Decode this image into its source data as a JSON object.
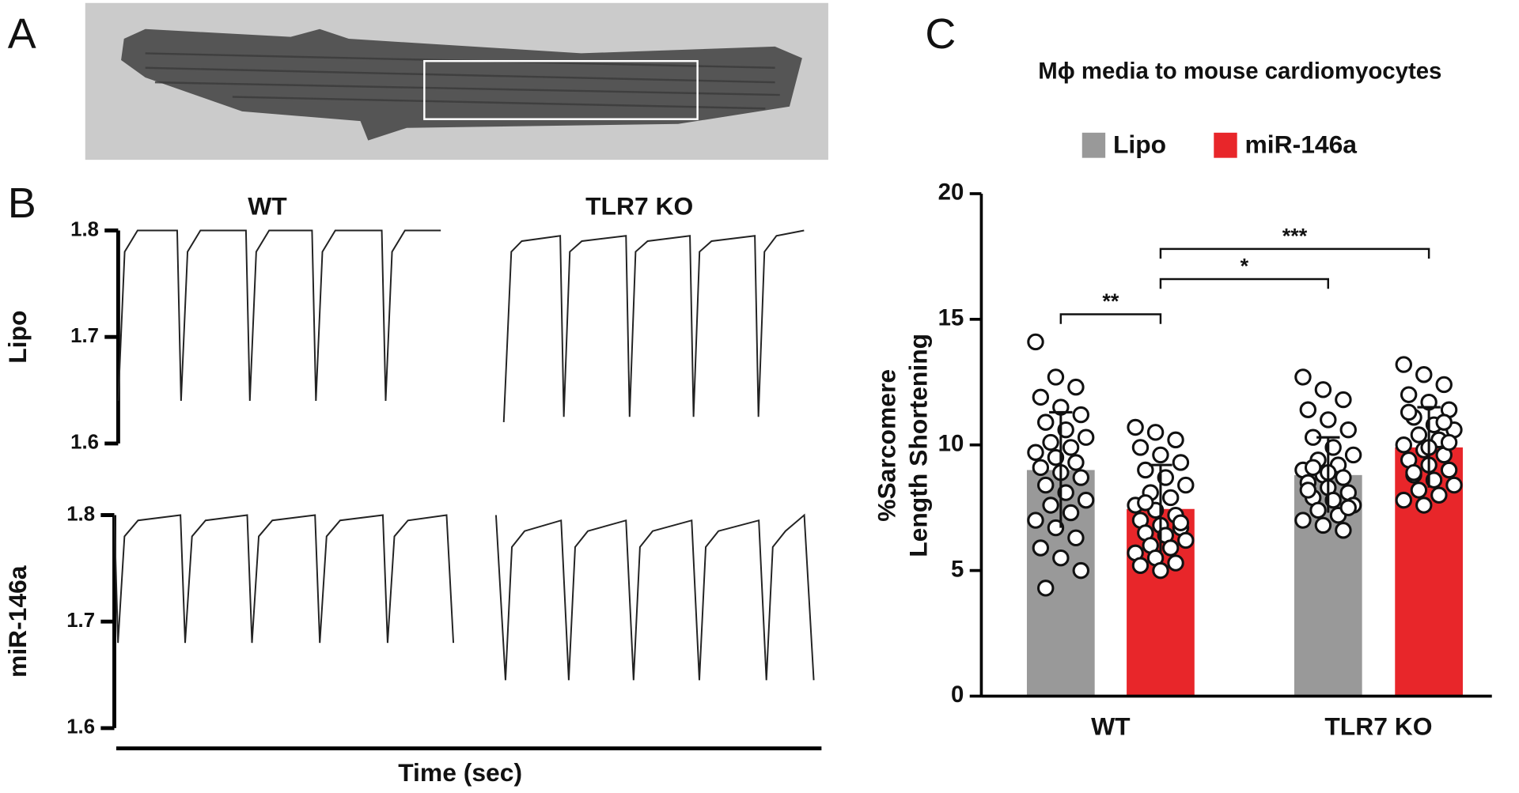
{
  "chart_data": [
    {
      "type": "image",
      "label": "A"
    },
    {
      "type": "line",
      "label": "B",
      "columns": [
        "WT",
        "TLR7 KO"
      ],
      "xlabel": "Time (sec)",
      "rows": [
        {
          "label": "Lipo",
          "ylim": [
            1.6,
            1.8
          ],
          "yticks": [
            1.6,
            1.7,
            1.8
          ],
          "series": [
            {
              "color": "#222222",
              "x": [
                0,
                0.02,
                0.06,
                0.183,
                0.195,
                0.215,
                0.255,
                0.396,
                0.408,
                0.428,
                0.468,
                0.601,
                0.613,
                0.633,
                0.673,
                0.817,
                0.829,
                0.849,
                0.889,
                1.0
              ],
              "values": [
                1.64,
                1.78,
                1.8,
                1.8,
                1.64,
                1.78,
                1.8,
                1.8,
                1.64,
                1.78,
                1.8,
                1.8,
                1.64,
                1.78,
                1.8,
                1.8,
                1.64,
                1.78,
                1.8,
                1.8
              ]
            },
            {
              "color": "#222222",
              "x": [
                0,
                0.025,
                0.06,
                0.188,
                0.2,
                0.22,
                0.26,
                0.407,
                0.419,
                0.439,
                0.479,
                0.62,
                0.632,
                0.652,
                0.692,
                0.836,
                0.848,
                0.868,
                0.908,
                1.0
              ],
              "values": [
                1.62,
                1.78,
                1.79,
                1.795,
                1.625,
                1.78,
                1.79,
                1.795,
                1.625,
                1.78,
                1.79,
                1.795,
                1.625,
                1.78,
                1.79,
                1.795,
                1.625,
                1.78,
                1.795,
                1.8
              ]
            }
          ]
        },
        {
          "label": "miR-146a",
          "ylim": [
            1.6,
            1.8
          ],
          "yticks": [
            1.6,
            1.7,
            1.8
          ],
          "series": [
            {
              "color": "#222222",
              "x": [
                0,
                0.011,
                0.03,
                0.07,
                0.195,
                0.209,
                0.229,
                0.269,
                0.392,
                0.406,
                0.426,
                0.466,
                0.592,
                0.606,
                0.626,
                0.666,
                0.792,
                0.806,
                0.826,
                0.866,
                0.98,
                1.0
              ],
              "values": [
                1.8,
                1.68,
                1.78,
                1.795,
                1.8,
                1.68,
                1.78,
                1.795,
                1.8,
                1.68,
                1.78,
                1.795,
                1.8,
                1.68,
                1.78,
                1.795,
                1.8,
                1.68,
                1.78,
                1.795,
                1.8,
                1.68
              ]
            },
            {
              "color": "#222222",
              "x": [
                0,
                0.03,
                0.05,
                0.09,
                0.205,
                0.229,
                0.249,
                0.289,
                0.409,
                0.433,
                0.453,
                0.493,
                0.616,
                0.64,
                0.66,
                0.7,
                0.827,
                0.851,
                0.871,
                0.911,
                0.97,
                1.0
              ],
              "values": [
                1.8,
                1.645,
                1.77,
                1.785,
                1.795,
                1.645,
                1.77,
                1.785,
                1.795,
                1.645,
                1.77,
                1.785,
                1.795,
                1.645,
                1.77,
                1.785,
                1.795,
                1.645,
                1.77,
                1.785,
                1.8,
                1.645
              ]
            }
          ]
        }
      ]
    },
    {
      "type": "bar",
      "label": "C",
      "title": "Mϕ media to mouse cardiomyocytes",
      "ylabel": [
        "%Sarcomere",
        "Length Shortening"
      ],
      "categories": [
        "WT",
        "TLR7 KO"
      ],
      "ylim": [
        0,
        20
      ],
      "yticks": [
        0,
        5,
        10,
        15,
        20
      ],
      "series": [
        {
          "name": "Lipo",
          "color": "#999999",
          "values": [
            9.0,
            8.8
          ],
          "errors": [
            2.3,
            1.5
          ],
          "points": [
            [
              14.1,
              12.7,
              12.3,
              11.9,
              11.5,
              11.2,
              10.9,
              10.6,
              10.3,
              10.1,
              9.9,
              9.7,
              9.5,
              9.3,
              9.1,
              8.9,
              8.7,
              8.4,
              8.1,
              7.8,
              7.6,
              7.3,
              7.0,
              6.7,
              6.3,
              5.9,
              5.5,
              5.0,
              4.3
            ],
            [
              12.7,
              12.2,
              11.8,
              11.4,
              11.0,
              10.6,
              10.3,
              9.9,
              9.6,
              9.4,
              9.2,
              9.0,
              8.8,
              8.7,
              8.5,
              8.3,
              8.1,
              7.9,
              7.8,
              7.6,
              7.4,
              7.2,
              7.0,
              6.8,
              6.6,
              8.2,
              8.9,
              7.5,
              9.1
            ]
          ]
        },
        {
          "name": "miR-146a",
          "color": "#e8262a",
          "values": [
            7.45,
            9.9
          ],
          "errors": [
            1.75,
            1.6
          ],
          "points": [
            [
              10.7,
              10.5,
              10.2,
              9.9,
              9.6,
              9.3,
              9.0,
              8.7,
              8.4,
              8.1,
              7.9,
              7.6,
              7.4,
              7.2,
              7.0,
              6.8,
              6.7,
              6.5,
              6.4,
              6.2,
              6.0,
              5.9,
              5.7,
              5.5,
              5.3,
              5.2,
              5.0,
              6.9,
              7.7
            ],
            [
              13.2,
              12.8,
              12.4,
              12.0,
              11.7,
              11.4,
              11.1,
              10.8,
              10.6,
              10.4,
              10.2,
              10.0,
              9.8,
              9.6,
              9.4,
              9.2,
              9.0,
              8.8,
              8.6,
              8.4,
              8.2,
              8.0,
              7.8,
              7.6,
              10.9,
              11.3,
              9.9,
              10.1,
              8.9
            ]
          ]
        }
      ],
      "annotations": [
        {
          "text": "**",
          "y": 15.2
        },
        {
          "text": "*",
          "y": 16.6
        },
        {
          "text": "***",
          "y": 17.8
        }
      ]
    }
  ]
}
